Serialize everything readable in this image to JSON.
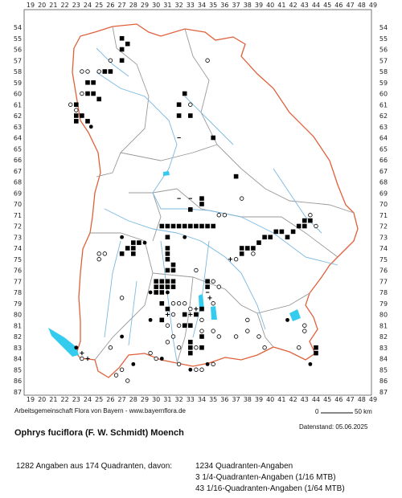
{
  "map": {
    "x_ticks": [
      "19",
      "20",
      "21",
      "22",
      "23",
      "24",
      "25",
      "26",
      "27",
      "28",
      "29",
      "30",
      "31",
      "32",
      "33",
      "34",
      "35",
      "36",
      "37",
      "38",
      "39",
      "40",
      "41",
      "42",
      "43",
      "44",
      "45",
      "46",
      "47",
      "48",
      "49"
    ],
    "y_ticks": [
      "54",
      "55",
      "56",
      "57",
      "58",
      "59",
      "60",
      "61",
      "62",
      "63",
      "64",
      "65",
      "66",
      "67",
      "68",
      "69",
      "70",
      "71",
      "72",
      "73",
      "74",
      "75",
      "76",
      "77",
      "78",
      "79",
      "80",
      "81",
      "82",
      "83",
      "84",
      "85",
      "86",
      "87"
    ],
    "colors": {
      "outline": "#e0603a",
      "districts": "#999999",
      "rivers": "#7ab8e0",
      "lakes": "#33ccee",
      "frame": "#555555",
      "marker": "#000000"
    },
    "points": [
      {
        "x": 27,
        "y": 55,
        "m": "filled"
      },
      {
        "x": 27.5,
        "y": 55.5,
        "m": "filled"
      },
      {
        "x": 27,
        "y": 56,
        "m": "filled"
      },
      {
        "x": 26,
        "y": 57,
        "m": "open"
      },
      {
        "x": 27,
        "y": 57,
        "m": "filled"
      },
      {
        "x": 23.5,
        "y": 58,
        "m": "open"
      },
      {
        "x": 24,
        "y": 58,
        "m": "open"
      },
      {
        "x": 25,
        "y": 58,
        "m": "open"
      },
      {
        "x": 25.5,
        "y": 58,
        "m": "filled"
      },
      {
        "x": 26,
        "y": 58,
        "m": "filled"
      },
      {
        "x": 24,
        "y": 59,
        "m": "filled"
      },
      {
        "x": 24.5,
        "y": 59,
        "m": "filled"
      },
      {
        "x": 23.5,
        "y": 60,
        "m": "open"
      },
      {
        "x": 24,
        "y": 60,
        "m": "filled"
      },
      {
        "x": 24.5,
        "y": 60,
        "m": "filled"
      },
      {
        "x": 25,
        "y": 60.5,
        "m": "filled"
      },
      {
        "x": 23,
        "y": 61,
        "m": "filled"
      },
      {
        "x": 22.5,
        "y": 61,
        "m": "open"
      },
      {
        "x": 23,
        "y": 61.5,
        "m": "open"
      },
      {
        "x": 23,
        "y": 62,
        "m": "filled"
      },
      {
        "x": 23.5,
        "y": 62,
        "m": "filled"
      },
      {
        "x": 23,
        "y": 62.5,
        "m": "filled"
      },
      {
        "x": 24,
        "y": 62.5,
        "m": "filled"
      },
      {
        "x": 24.3,
        "y": 63,
        "m": "dot"
      },
      {
        "x": 32.5,
        "y": 60,
        "m": "filled"
      },
      {
        "x": 32,
        "y": 61,
        "m": "filled"
      },
      {
        "x": 33,
        "y": 61,
        "m": "open"
      },
      {
        "x": 32,
        "y": 62,
        "m": "filled"
      },
      {
        "x": 33,
        "y": 62,
        "m": "filled"
      },
      {
        "x": 34.5,
        "y": 57,
        "m": "open"
      },
      {
        "x": 35,
        "y": 64,
        "m": "filled"
      },
      {
        "x": 32,
        "y": 64,
        "m": "dash"
      },
      {
        "x": 37,
        "y": 67.5,
        "m": "filled"
      },
      {
        "x": 32,
        "y": 69.5,
        "m": "dash"
      },
      {
        "x": 33,
        "y": 69.5,
        "m": "dash"
      },
      {
        "x": 34,
        "y": 69.5,
        "m": "filled"
      },
      {
        "x": 34,
        "y": 70,
        "m": "filled"
      },
      {
        "x": 33,
        "y": 70.5,
        "m": "filled"
      },
      {
        "x": 37.5,
        "y": 69.5,
        "m": "open"
      },
      {
        "x": 35.5,
        "y": 71,
        "m": "open"
      },
      {
        "x": 36,
        "y": 71,
        "m": "open"
      },
      {
        "x": 30.5,
        "y": 72,
        "m": "filled"
      },
      {
        "x": 31,
        "y": 72,
        "m": "filled"
      },
      {
        "x": 31.5,
        "y": 72,
        "m": "filled"
      },
      {
        "x": 32,
        "y": 72,
        "m": "filled"
      },
      {
        "x": 32.5,
        "y": 72,
        "m": "filled"
      },
      {
        "x": 33,
        "y": 72,
        "m": "filled"
      },
      {
        "x": 33.5,
        "y": 72,
        "m": "filled"
      },
      {
        "x": 34,
        "y": 72,
        "m": "filled"
      },
      {
        "x": 34.5,
        "y": 72,
        "m": "filled"
      },
      {
        "x": 35,
        "y": 72,
        "m": "filled"
      },
      {
        "x": 27,
        "y": 73,
        "m": "dot"
      },
      {
        "x": 31,
        "y": 73,
        "m": "filled"
      },
      {
        "x": 32.5,
        "y": 73,
        "m": "dot"
      },
      {
        "x": 28,
        "y": 73.5,
        "m": "filled"
      },
      {
        "x": 28.5,
        "y": 73.5,
        "m": "filled"
      },
      {
        "x": 29,
        "y": 73.5,
        "m": "dot"
      },
      {
        "x": 27.5,
        "y": 74,
        "m": "filled"
      },
      {
        "x": 28,
        "y": 74,
        "m": "filled"
      },
      {
        "x": 31,
        "y": 74,
        "m": "filled"
      },
      {
        "x": 31,
        "y": 74.5,
        "m": "filled"
      },
      {
        "x": 27,
        "y": 74.5,
        "m": "filled"
      },
      {
        "x": 28,
        "y": 74.5,
        "m": "filled"
      },
      {
        "x": 25,
        "y": 74.5,
        "m": "open"
      },
      {
        "x": 25.5,
        "y": 74.5,
        "m": "open"
      },
      {
        "x": 25,
        "y": 75,
        "m": "open"
      },
      {
        "x": 31,
        "y": 75,
        "m": "filled"
      },
      {
        "x": 31.5,
        "y": 75.5,
        "m": "filled"
      },
      {
        "x": 31,
        "y": 76,
        "m": "filled"
      },
      {
        "x": 31.5,
        "y": 76,
        "m": "filled"
      },
      {
        "x": 30,
        "y": 77,
        "m": "filled"
      },
      {
        "x": 30.5,
        "y": 77,
        "m": "filled"
      },
      {
        "x": 31,
        "y": 77,
        "m": "filled"
      },
      {
        "x": 31.5,
        "y": 77,
        "m": "filled"
      },
      {
        "x": 33.5,
        "y": 76,
        "m": "open"
      },
      {
        "x": 30,
        "y": 77.5,
        "m": "filled"
      },
      {
        "x": 30.5,
        "y": 77.5,
        "m": "filled"
      },
      {
        "x": 31,
        "y": 77.5,
        "m": "filled"
      },
      {
        "x": 31.5,
        "y": 77.5,
        "m": "filled"
      },
      {
        "x": 30,
        "y": 78,
        "m": "filled"
      },
      {
        "x": 30.5,
        "y": 78,
        "m": "filled"
      },
      {
        "x": 31,
        "y": 78,
        "m": "dot"
      },
      {
        "x": 29.5,
        "y": 78,
        "m": "dot"
      },
      {
        "x": 34.5,
        "y": 77,
        "m": "filled"
      },
      {
        "x": 35,
        "y": 77,
        "m": "open"
      },
      {
        "x": 34.5,
        "y": 77.5,
        "m": "filled"
      },
      {
        "x": 35.5,
        "y": 77.5,
        "m": "open"
      },
      {
        "x": 34.5,
        "y": 78,
        "m": "dash"
      },
      {
        "x": 34.7,
        "y": 78.5,
        "m": "plus"
      },
      {
        "x": 35,
        "y": 79,
        "m": "open"
      },
      {
        "x": 36.5,
        "y": 75,
        "m": "plus"
      },
      {
        "x": 37,
        "y": 75,
        "m": "open"
      },
      {
        "x": 37.5,
        "y": 74,
        "m": "filled"
      },
      {
        "x": 38,
        "y": 74,
        "m": "filled"
      },
      {
        "x": 37.5,
        "y": 74.5,
        "m": "filled"
      },
      {
        "x": 38.5,
        "y": 74,
        "m": "filled"
      },
      {
        "x": 39,
        "y": 73.5,
        "m": "filled"
      },
      {
        "x": 39.5,
        "y": 73,
        "m": "filled"
      },
      {
        "x": 40,
        "y": 73,
        "m": "filled"
      },
      {
        "x": 40.5,
        "y": 72.5,
        "m": "filled"
      },
      {
        "x": 41,
        "y": 72.5,
        "m": "filled"
      },
      {
        "x": 41.5,
        "y": 73,
        "m": "filled"
      },
      {
        "x": 42,
        "y": 72.5,
        "m": "filled"
      },
      {
        "x": 42.5,
        "y": 72,
        "m": "filled"
      },
      {
        "x": 43,
        "y": 72,
        "m": "filled"
      },
      {
        "x": 43.5,
        "y": 71.5,
        "m": "filled"
      },
      {
        "x": 43,
        "y": 71.5,
        "m": "filled"
      },
      {
        "x": 43.5,
        "y": 71,
        "m": "open"
      },
      {
        "x": 44,
        "y": 72,
        "m": "open"
      },
      {
        "x": 38.5,
        "y": 74.5,
        "m": "open"
      },
      {
        "x": 27,
        "y": 78.5,
        "m": "open"
      },
      {
        "x": 30.5,
        "y": 79,
        "m": "filled"
      },
      {
        "x": 31,
        "y": 79.5,
        "m": "filled"
      },
      {
        "x": 31.5,
        "y": 79,
        "m": "open"
      },
      {
        "x": 32,
        "y": 79,
        "m": "open"
      },
      {
        "x": 32.5,
        "y": 79,
        "m": "open"
      },
      {
        "x": 33,
        "y": 79.5,
        "m": "open"
      },
      {
        "x": 33.5,
        "y": 79.5,
        "m": "plus"
      },
      {
        "x": 31,
        "y": 80,
        "m": "plus"
      },
      {
        "x": 31.5,
        "y": 80,
        "m": "open"
      },
      {
        "x": 32.5,
        "y": 80,
        "m": "filled"
      },
      {
        "x": 33,
        "y": 80,
        "m": "plus"
      },
      {
        "x": 33.5,
        "y": 80,
        "m": "filled"
      },
      {
        "x": 34,
        "y": 79.5,
        "m": "filled"
      },
      {
        "x": 34,
        "y": 80.5,
        "m": "open"
      },
      {
        "x": 29.5,
        "y": 80.5,
        "m": "dot"
      },
      {
        "x": 30.5,
        "y": 80.5,
        "m": "filled"
      },
      {
        "x": 31,
        "y": 81,
        "m": "open"
      },
      {
        "x": 32,
        "y": 81,
        "m": "open"
      },
      {
        "x": 32.5,
        "y": 81,
        "m": "filled"
      },
      {
        "x": 33,
        "y": 81,
        "m": "filled"
      },
      {
        "x": 34,
        "y": 81.5,
        "m": "open"
      },
      {
        "x": 35,
        "y": 81.5,
        "m": "open"
      },
      {
        "x": 34,
        "y": 82,
        "m": "filled"
      },
      {
        "x": 33,
        "y": 82.5,
        "m": "filled"
      },
      {
        "x": 33,
        "y": 83,
        "m": "filled"
      },
      {
        "x": 33.5,
        "y": 83,
        "m": "open"
      },
      {
        "x": 34,
        "y": 83,
        "m": "filled"
      },
      {
        "x": 33,
        "y": 83.5,
        "m": "filled"
      },
      {
        "x": 32,
        "y": 83,
        "m": "open"
      },
      {
        "x": 31.5,
        "y": 82,
        "m": "open"
      },
      {
        "x": 31,
        "y": 82.5,
        "m": "open"
      },
      {
        "x": 35.5,
        "y": 82,
        "m": "open"
      },
      {
        "x": 37,
        "y": 82,
        "m": "open"
      },
      {
        "x": 38,
        "y": 81.5,
        "m": "open"
      },
      {
        "x": 38,
        "y": 80.5,
        "m": "open"
      },
      {
        "x": 39,
        "y": 82,
        "m": "open"
      },
      {
        "x": 39.5,
        "y": 83,
        "m": "open"
      },
      {
        "x": 41.5,
        "y": 80.5,
        "m": "dot"
      },
      {
        "x": 43,
        "y": 81,
        "m": "open"
      },
      {
        "x": 43,
        "y": 81.5,
        "m": "open"
      },
      {
        "x": 42.5,
        "y": 83,
        "m": "open"
      },
      {
        "x": 44,
        "y": 83,
        "m": "filled"
      },
      {
        "x": 44,
        "y": 83.5,
        "m": "filled"
      },
      {
        "x": 43.5,
        "y": 84.5,
        "m": "dot"
      },
      {
        "x": 27,
        "y": 82,
        "m": "dot"
      },
      {
        "x": 23,
        "y": 83,
        "m": "dot"
      },
      {
        "x": 23.5,
        "y": 83.5,
        "m": "plus"
      },
      {
        "x": 24,
        "y": 84,
        "m": "plus"
      },
      {
        "x": 23.5,
        "y": 84,
        "m": "open"
      },
      {
        "x": 26,
        "y": 83,
        "m": "open"
      },
      {
        "x": 27,
        "y": 85,
        "m": "open"
      },
      {
        "x": 26.5,
        "y": 85.5,
        "m": "open"
      },
      {
        "x": 27.5,
        "y": 86,
        "m": "open"
      },
      {
        "x": 28,
        "y": 84.5,
        "m": "dot"
      },
      {
        "x": 29.5,
        "y": 83.5,
        "m": "open"
      },
      {
        "x": 30,
        "y": 84,
        "m": "open"
      },
      {
        "x": 30.5,
        "y": 84,
        "m": "dot"
      },
      {
        "x": 32,
        "y": 84.5,
        "m": "open"
      },
      {
        "x": 33,
        "y": 85,
        "m": "dot"
      },
      {
        "x": 33.5,
        "y": 85,
        "m": "open"
      },
      {
        "x": 34.5,
        "y": 84.5,
        "m": "dot"
      },
      {
        "x": 34,
        "y": 85,
        "m": "open"
      },
      {
        "x": 35,
        "y": 84.5,
        "m": "open"
      }
    ]
  },
  "footer": {
    "credit": "Arbeitsgemeinschaft Flora von Bayern - www.bayernflora.de",
    "scale_start": "0",
    "scale_end": "50 km",
    "date": "Datenstand: 05.06.2025",
    "species": "Ophrys fuciflora (F. W. Schmidt) Moench",
    "summary": "1282 Angaben aus 174 Quadranten, davon:",
    "counts": [
      "1234 Quadranten-Angaben",
      "3 1/4-Quadranten-Angaben (1/16 MTB)",
      "43 1/16-Quadranten-Angaben (1/64 MTB)"
    ]
  }
}
